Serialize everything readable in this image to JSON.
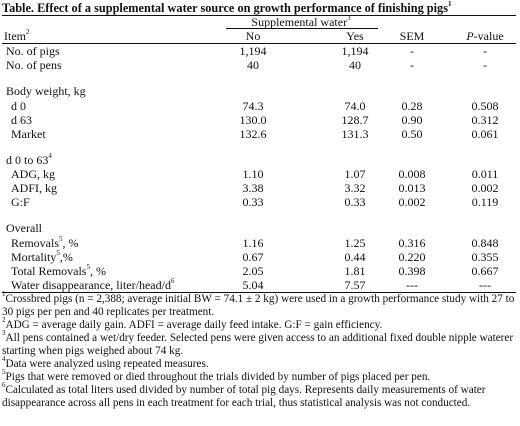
{
  "title": "Table. Effect of a supplemental water source on growth performance of finishing pigs",
  "title_sup": "1",
  "header": {
    "group": "Supplemental water",
    "group_sup": "3",
    "item": "Item",
    "item_sup": "2",
    "no": "No",
    "yes": "Yes",
    "sem": "SEM",
    "p": "P",
    "p_suffix": "-value"
  },
  "rows": {
    "no_pigs": {
      "label": "No. of pigs",
      "no": "1,194",
      "yes": "1,194",
      "sem": "-",
      "p": "-"
    },
    "no_pens": {
      "label": "No. of pens",
      "no": "40",
      "yes": "40",
      "sem": "-",
      "p": "-"
    },
    "bw_title": {
      "label": "Body weight, kg"
    },
    "d0": {
      "label": "d 0",
      "no": "74.3",
      "yes": "74.0",
      "sem": "0.28",
      "p": "0.508"
    },
    "d63": {
      "label": "d 63",
      "no": "130.0",
      "yes": "128.7",
      "sem": "0.90",
      "p": "0.312"
    },
    "market": {
      "label": "Market",
      "no": "132.6",
      "yes": "131.3",
      "sem": "0.50",
      "p": "0.061"
    },
    "period_title": {
      "label": "d 0 to 63",
      "sup": "4"
    },
    "adg": {
      "label": "ADG, kg",
      "no": "1.10",
      "yes": "1.07",
      "sem": "0.008",
      "p": "0.011"
    },
    "adfi": {
      "label": "ADFI, kg",
      "no": "3.38",
      "yes": "3.32",
      "sem": "0.013",
      "p": "0.002"
    },
    "gf": {
      "label": "G:F",
      "no": "0.33",
      "yes": "0.33",
      "sem": "0.002",
      "p": "0.119"
    },
    "overall_title": {
      "label": "Overall"
    },
    "removals": {
      "label": "Removals",
      "sup": "5",
      "suffix": ", %",
      "no": "1.16",
      "yes": "1.25",
      "sem": "0.316",
      "p": "0.848"
    },
    "mortality": {
      "label": "Mortality",
      "sup": "5",
      "suffix": ",%",
      "no": "0.67",
      "yes": "0.44",
      "sem": "0.220",
      "p": "0.355"
    },
    "total_removals": {
      "label": "Total Removals",
      "sup": "5",
      "suffix": ", %",
      "no": "2.05",
      "yes": "1.81",
      "sem": "0.398",
      "p": "0.667"
    },
    "water": {
      "label": "Water disappearance, liter/head/d",
      "sup": "6",
      "no": "5.04",
      "yes": "7.57",
      "sem": "---",
      "p": "---"
    }
  },
  "footnotes": [
    {
      "sup": "1",
      "text": "Crossbred pigs (n = 2,388; average initial BW = 74.1 ± 2 kg) were used in a growth performance study with 27 to 30 pigs per pen and 40 replicates per treatment."
    },
    {
      "sup": "2",
      "text": "ADG = average daily gain. ADFI = average daily feed intake. G:F = gain efficiency."
    },
    {
      "sup": "3",
      "text": "All pens contained a wet/dry feeder. Selected pens were given access to an additional fixed double nipple waterer starting when pigs weighed about 74 kg."
    },
    {
      "sup": "4",
      "text": "Data were analyzed using repeated measures."
    },
    {
      "sup": "5",
      "text": "Pigs that were removed or died throughout the trials divided by number of pigs placed per pen."
    },
    {
      "sup": "6",
      "text": "Calculated as total liters used divided by number of total pig days. Represents daily measurements of water disappearance across all pens in each treatment for each trial, thus statistical analysis was not conducted."
    }
  ]
}
